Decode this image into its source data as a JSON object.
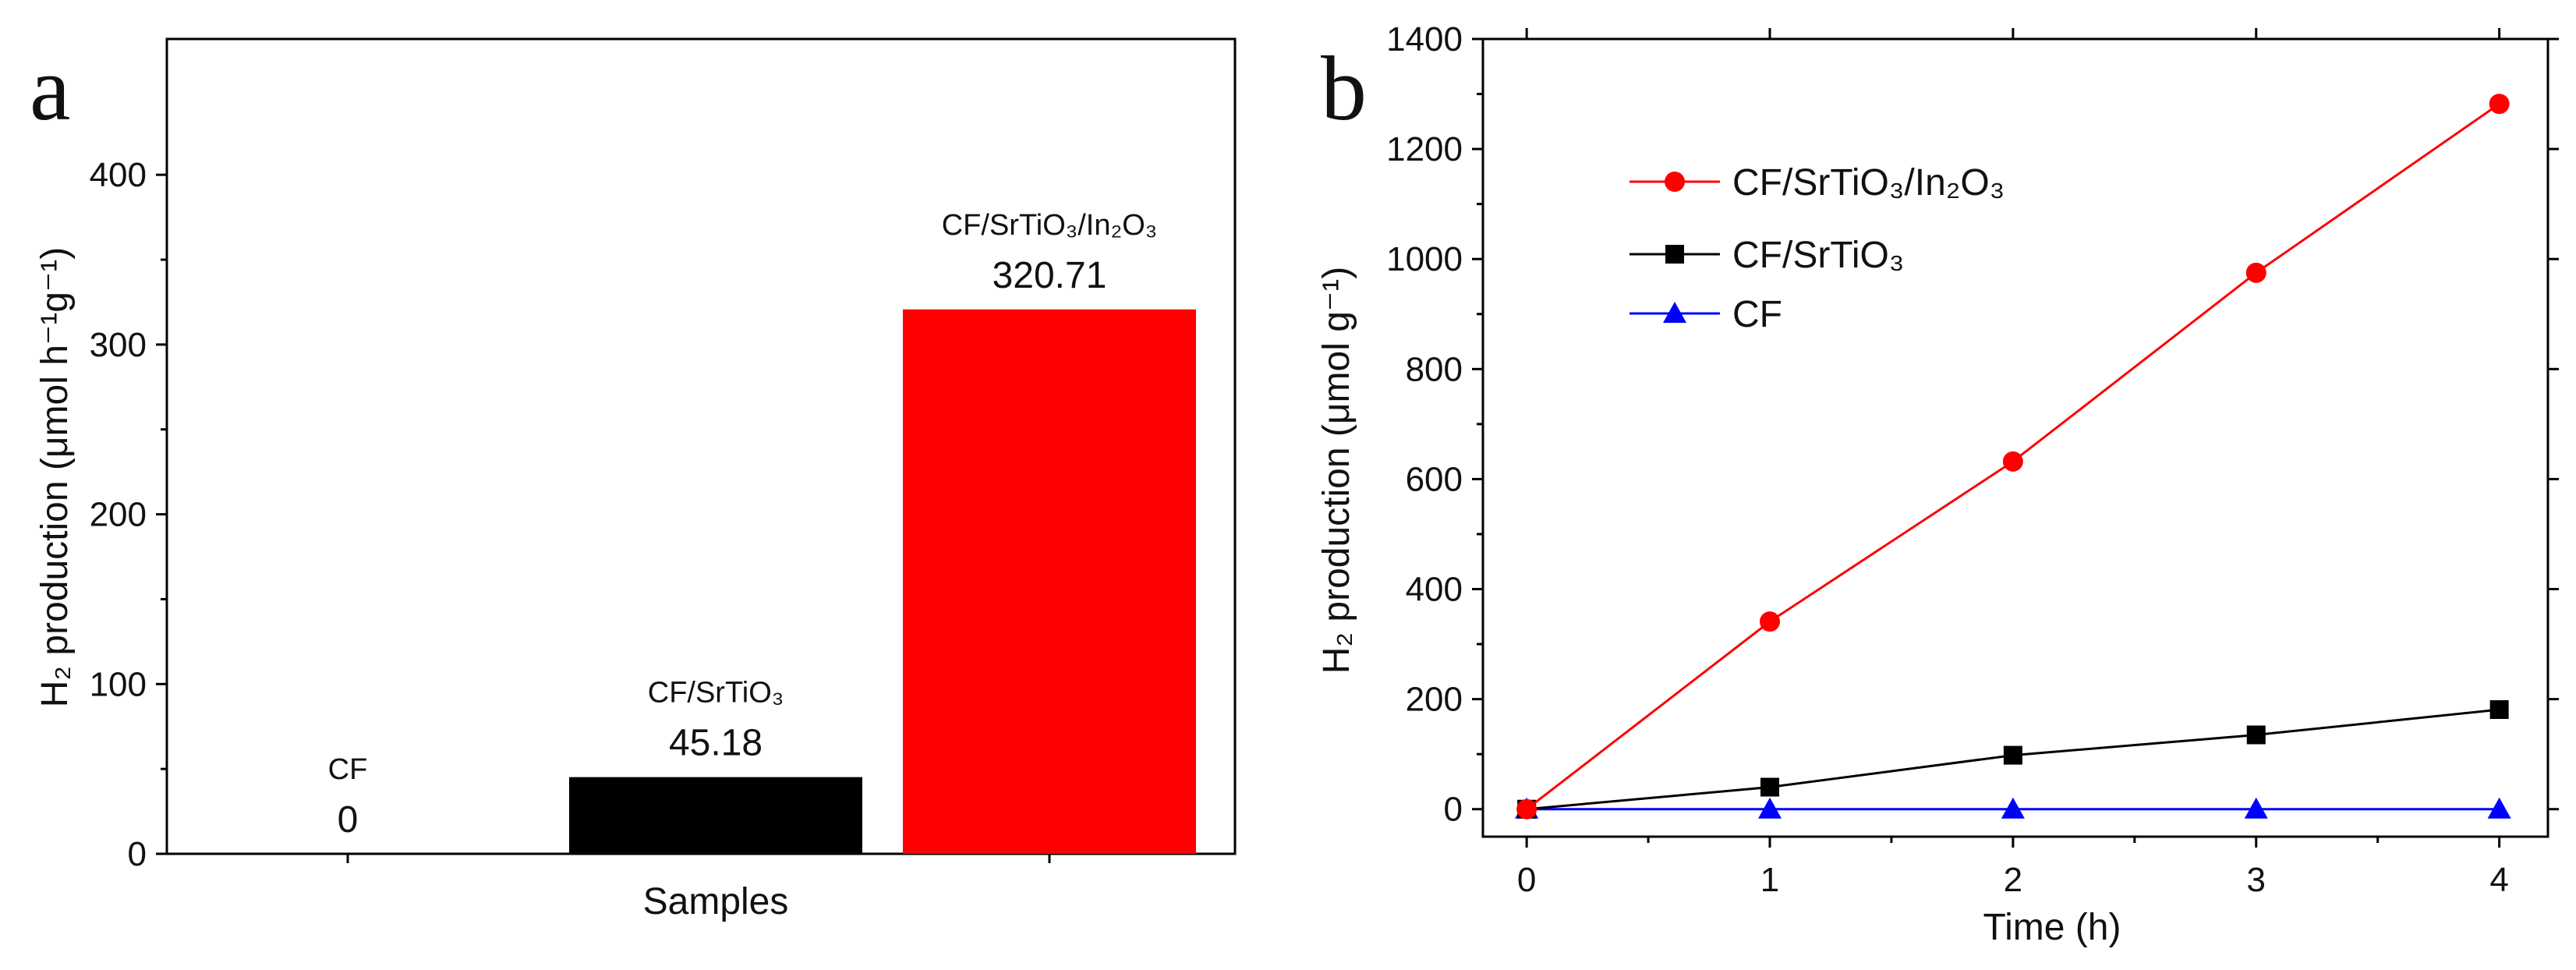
{
  "chart_data": [
    {
      "panel": "a",
      "type": "bar",
      "xlabel": "Samples",
      "ylabel": "H₂ production (μmol h⁻¹g⁻¹)",
      "ylim": [
        0,
        480
      ],
      "yticks": [
        "0",
        "100",
        "200",
        "300",
        "400"
      ],
      "categories": [
        "CF",
        "CF/SrTiO₃",
        "CF/SrTiO₃/In₂O₃"
      ],
      "values": [
        0,
        45.18,
        320.71
      ],
      "value_labels": [
        "0",
        "45.18",
        "320.71"
      ],
      "colors": [
        "#000000",
        "#000000",
        "#ff0000"
      ]
    },
    {
      "panel": "b",
      "type": "line",
      "xlabel": "Time (h)",
      "ylabel": "H₂ production (μmol g⁻¹)",
      "xlim": [
        -0.18,
        4.2
      ],
      "ylim": [
        -50,
        1400
      ],
      "xticks": [
        "0",
        "1",
        "2",
        "3",
        "4"
      ],
      "yticks": [
        "0",
        "200",
        "400",
        "600",
        "800",
        "1000",
        "1200",
        "1400"
      ],
      "x": [
        0,
        1,
        2,
        3,
        4
      ],
      "legend_position": "upper-left",
      "series": [
        {
          "name": "CF/SrTiO₃/In₂O₃",
          "values": [
            0,
            341,
            632,
            975,
            1282
          ],
          "color": "#ff0000",
          "marker": "circle"
        },
        {
          "name": "CF/SrTiO₃",
          "values": [
            0,
            40,
            98,
            135,
            181
          ],
          "color": "#000000",
          "marker": "square"
        },
        {
          "name": "CF",
          "values": [
            0,
            0,
            0,
            0,
            0
          ],
          "color": "#0000ff",
          "marker": "triangle"
        }
      ]
    }
  ]
}
